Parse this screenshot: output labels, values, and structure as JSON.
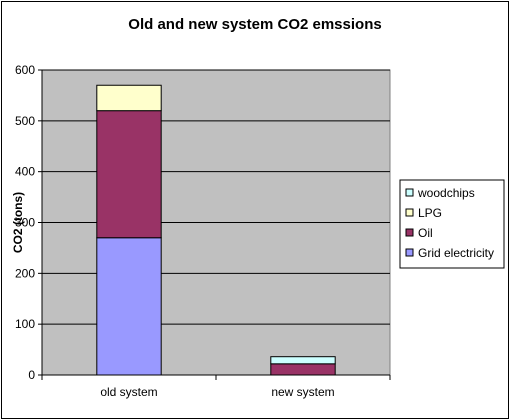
{
  "chart_data": {
    "type": "bar",
    "stacked": true,
    "title": "Old and new system CO2 emssions",
    "xlabel": "",
    "ylabel": "CO2 (tons)",
    "categories": [
      "old system",
      "new system"
    ],
    "ylim": [
      0,
      600
    ],
    "yticks": [
      0,
      100,
      200,
      300,
      400,
      500,
      600
    ],
    "grid": true,
    "legend_position": "right",
    "plot_background": "#C0C0C0",
    "series": [
      {
        "name": "Grid electricity",
        "color": "#9999FF",
        "values": [
          270,
          0
        ]
      },
      {
        "name": "Oil",
        "color": "#993366",
        "values": [
          250,
          22
        ]
      },
      {
        "name": "LPG",
        "color": "#FFFFCC",
        "values": [
          50,
          0
        ]
      },
      {
        "name": "woodchips",
        "color": "#CCFFFF",
        "values": [
          0,
          14
        ]
      }
    ],
    "legend_order": [
      "woodchips",
      "LPG",
      "Oil",
      "Grid electricity"
    ]
  }
}
